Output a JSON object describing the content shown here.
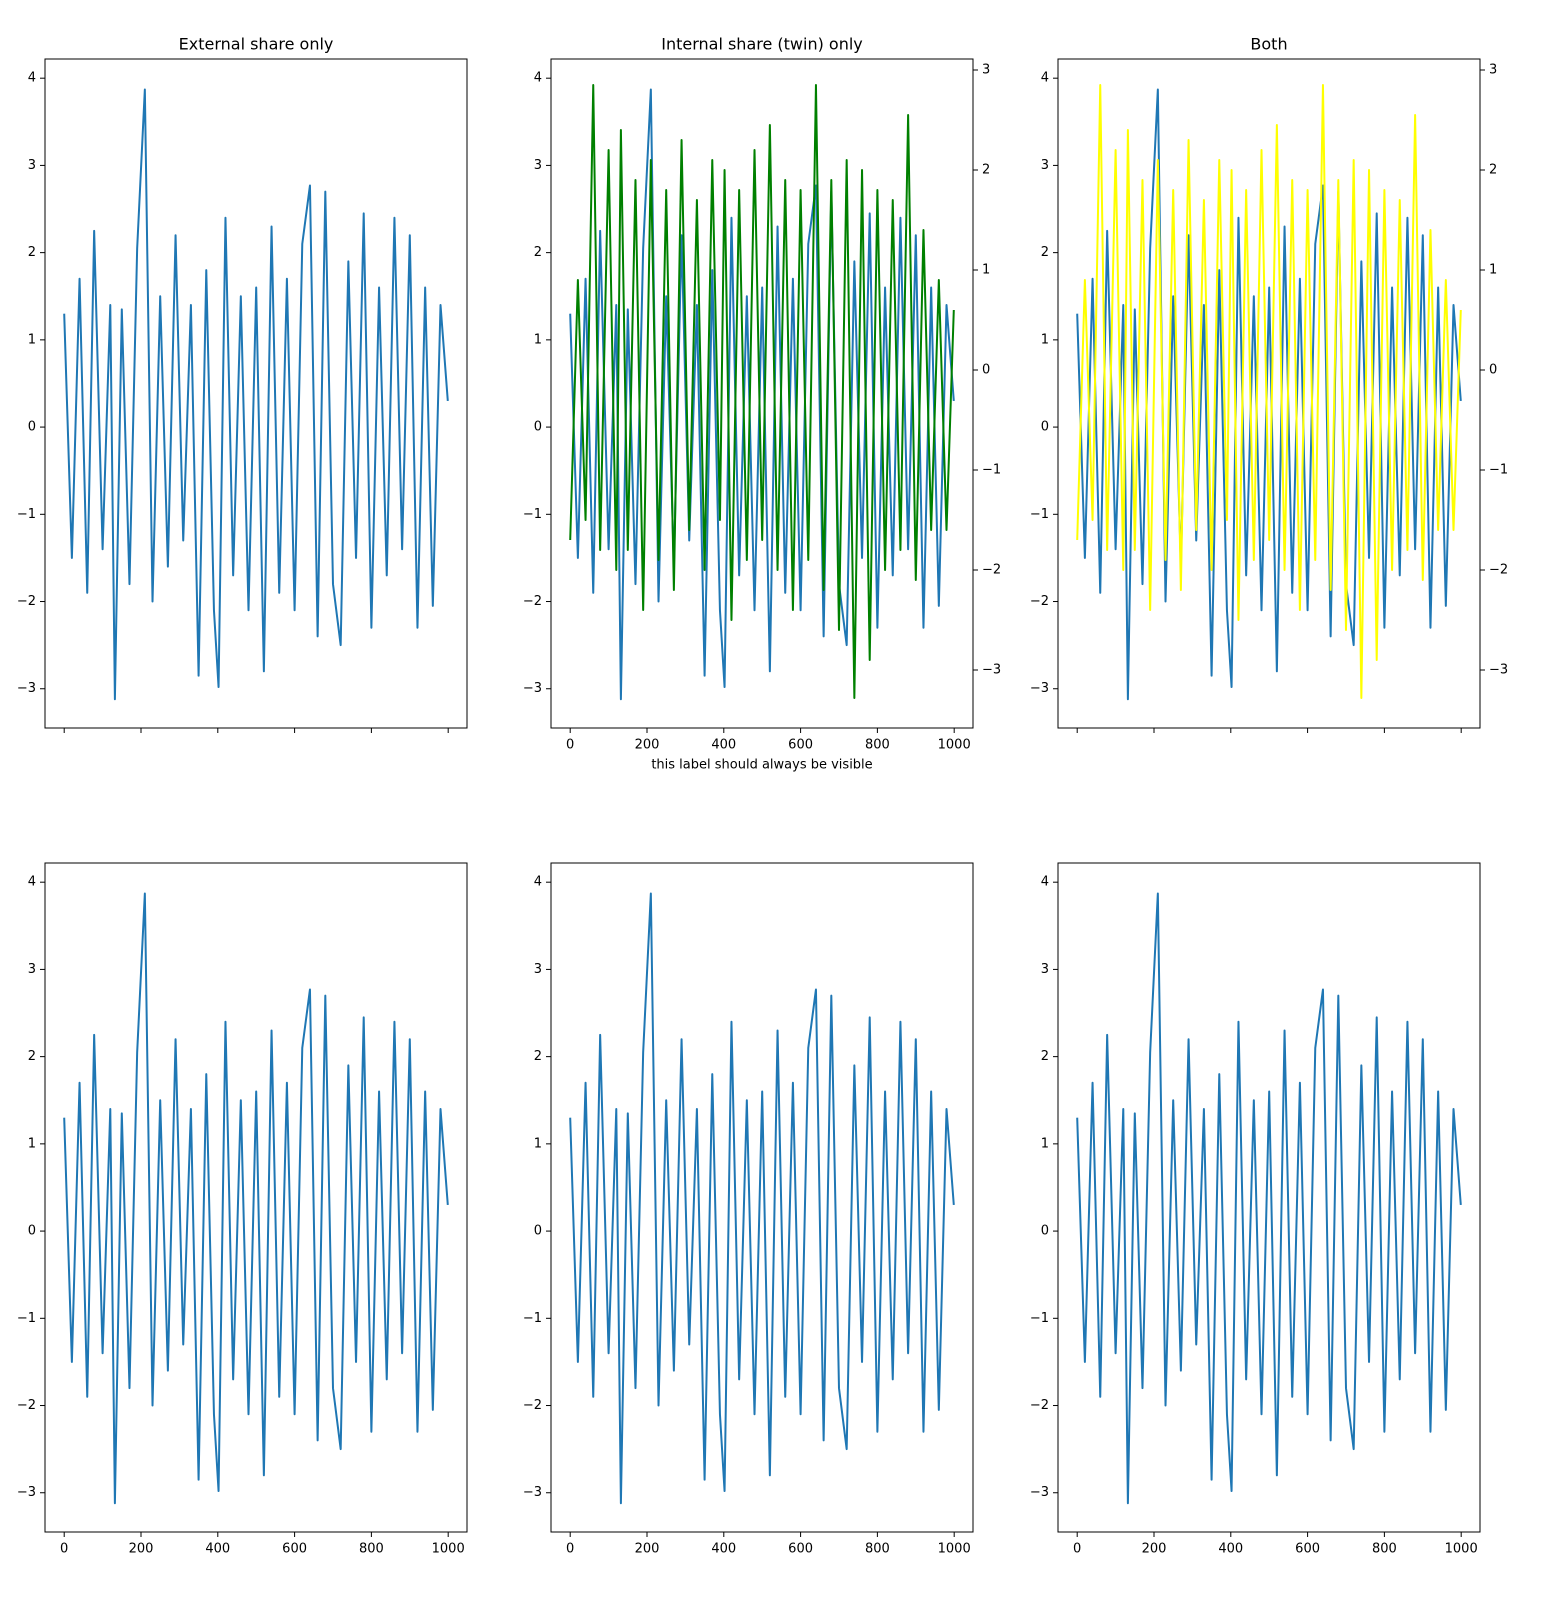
{
  "chart_data": [
    {
      "type": "line",
      "title": "External share only",
      "x": [
        0,
        20,
        40,
        60,
        78,
        100,
        120,
        132,
        150,
        170,
        190,
        210,
        230,
        250,
        270,
        290,
        310,
        330,
        350,
        370,
        390,
        402,
        420,
        440,
        460,
        480,
        500,
        520,
        540,
        560,
        580,
        600,
        620,
        640,
        660,
        680,
        700,
        720,
        740,
        760,
        780,
        800,
        820,
        840,
        860,
        880,
        900,
        920,
        940,
        960,
        980,
        999
      ],
      "series": [
        {
          "color": "#1f77b4",
          "values": [
            1.3,
            -1.5,
            1.7,
            -1.9,
            2.25,
            -1.4,
            1.4,
            -3.12,
            1.35,
            -1.8,
            2.05,
            3.87,
            -2.0,
            1.5,
            -1.6,
            2.2,
            -1.3,
            1.4,
            -2.85,
            1.8,
            -2.1,
            -2.98,
            2.4,
            -1.7,
            1.5,
            -2.1,
            1.6,
            -2.8,
            2.3,
            -1.9,
            1.7,
            -2.1,
            2.1,
            2.77,
            -2.4,
            2.7,
            -1.8,
            -2.5,
            1.9,
            -1.5,
            2.45,
            -2.3,
            1.6,
            -1.7,
            2.4,
            -1.4,
            2.2,
            -2.3,
            1.6,
            -2.05,
            1.4,
            0.3
          ]
        }
      ],
      "xlim": [
        -50,
        1049
      ],
      "ylim": [
        -3.45,
        4.22
      ],
      "xticks": [
        0,
        200,
        400,
        600,
        800,
        1000
      ],
      "xtick_labels_visible": false,
      "yticks": [
        {
          "value": -3,
          "label": "−3"
        },
        {
          "value": -2,
          "label": "−2"
        },
        {
          "value": -1,
          "label": "−1"
        },
        0,
        1,
        2,
        3,
        4
      ]
    },
    {
      "type": "line",
      "title": "Internal share (twin) only",
      "xlabel": "this label should always be visible",
      "x": [
        0,
        20,
        40,
        60,
        78,
        100,
        120,
        132,
        150,
        170,
        190,
        210,
        230,
        250,
        270,
        290,
        310,
        330,
        350,
        370,
        390,
        402,
        420,
        440,
        460,
        480,
        500,
        520,
        540,
        560,
        580,
        600,
        620,
        640,
        660,
        680,
        700,
        720,
        740,
        760,
        780,
        800,
        820,
        840,
        860,
        880,
        900,
        920,
        940,
        960,
        980,
        999
      ],
      "series": [
        {
          "color": "#1f77b4",
          "values": [
            1.3,
            -1.5,
            1.7,
            -1.9,
            2.25,
            -1.4,
            1.4,
            -3.12,
            1.35,
            -1.8,
            2.05,
            3.87,
            -2.0,
            1.5,
            -1.6,
            2.2,
            -1.3,
            1.4,
            -2.85,
            1.8,
            -2.1,
            -2.98,
            2.4,
            -1.7,
            1.5,
            -2.1,
            1.6,
            -2.8,
            2.3,
            -1.9,
            1.7,
            -2.1,
            2.1,
            2.77,
            -2.4,
            2.7,
            -1.8,
            -2.5,
            1.9,
            -1.5,
            2.45,
            -2.3,
            1.6,
            -1.7,
            2.4,
            -1.4,
            2.2,
            -2.3,
            1.6,
            -2.05,
            1.4,
            0.3
          ]
        },
        {
          "color": "green",
          "axis": "y2",
          "values": [
            -1.7,
            0.9,
            -1.5,
            2.85,
            -1.8,
            2.2,
            -2.0,
            2.4,
            -1.8,
            1.9,
            -2.4,
            2.1,
            -1.9,
            1.8,
            -2.2,
            2.3,
            -1.6,
            1.7,
            -2.0,
            2.1,
            -1.5,
            2.0,
            -2.5,
            1.8,
            -1.9,
            2.2,
            -1.7,
            2.45,
            -2.0,
            1.9,
            -2.4,
            1.8,
            -1.9,
            2.85,
            -2.2,
            1.9,
            -2.6,
            2.1,
            -3.28,
            2.0,
            -2.9,
            1.8,
            -2.0,
            1.7,
            -1.8,
            2.55,
            -2.1,
            1.4,
            -1.6,
            0.9,
            -1.6,
            0.6
          ]
        }
      ],
      "xlim": [
        -50,
        1049
      ],
      "ylim": [
        -3.45,
        4.22
      ],
      "y2lim": [
        -3.58,
        3.11
      ],
      "xticks": [
        0,
        200,
        400,
        600,
        800,
        1000
      ],
      "yticks": [
        {
          "value": -3,
          "label": "−3"
        },
        {
          "value": -2,
          "label": "−2"
        },
        {
          "value": -1,
          "label": "−1"
        },
        0,
        1,
        2,
        3,
        4
      ],
      "y2ticks": [
        {
          "value": -3,
          "label": "−3"
        },
        {
          "value": -2,
          "label": "−2"
        },
        {
          "value": -1,
          "label": "−1"
        },
        0,
        1,
        2,
        3
      ]
    },
    {
      "type": "line",
      "title": "Both",
      "x": [
        0,
        20,
        40,
        60,
        78,
        100,
        120,
        132,
        150,
        170,
        190,
        210,
        230,
        250,
        270,
        290,
        310,
        330,
        350,
        370,
        390,
        402,
        420,
        440,
        460,
        480,
        500,
        520,
        540,
        560,
        580,
        600,
        620,
        640,
        660,
        680,
        700,
        720,
        740,
        760,
        780,
        800,
        820,
        840,
        860,
        880,
        900,
        920,
        940,
        960,
        980,
        999
      ],
      "series": [
        {
          "color": "#1f77b4",
          "values": [
            1.3,
            -1.5,
            1.7,
            -1.9,
            2.25,
            -1.4,
            1.4,
            -3.12,
            1.35,
            -1.8,
            2.05,
            3.87,
            -2.0,
            1.5,
            -1.6,
            2.2,
            -1.3,
            1.4,
            -2.85,
            1.8,
            -2.1,
            -2.98,
            2.4,
            -1.7,
            1.5,
            -2.1,
            1.6,
            -2.8,
            2.3,
            -1.9,
            1.7,
            -2.1,
            2.1,
            2.77,
            -2.4,
            2.7,
            -1.8,
            -2.5,
            1.9,
            -1.5,
            2.45,
            -2.3,
            1.6,
            -1.7,
            2.4,
            -1.4,
            2.2,
            -2.3,
            1.6,
            -2.05,
            1.4,
            0.3
          ]
        },
        {
          "color": "yellow",
          "axis": "y2",
          "values": [
            -1.7,
            0.9,
            -1.5,
            2.85,
            -1.8,
            2.2,
            -2.0,
            2.4,
            -1.8,
            1.9,
            -2.4,
            2.1,
            -1.9,
            1.8,
            -2.2,
            2.3,
            -1.6,
            1.7,
            -2.0,
            2.1,
            -1.5,
            2.0,
            -2.5,
            1.8,
            -1.9,
            2.2,
            -1.7,
            2.45,
            -2.0,
            1.9,
            -2.4,
            1.8,
            -1.9,
            2.85,
            -2.2,
            1.9,
            -2.6,
            2.1,
            -3.28,
            2.0,
            -2.9,
            1.8,
            -2.0,
            1.7,
            -1.8,
            2.55,
            -2.1,
            1.4,
            -1.6,
            0.9,
            -1.6,
            0.6
          ]
        }
      ],
      "xlim": [
        -50,
        1049
      ],
      "ylim": [
        -3.45,
        4.22
      ],
      "y2lim": [
        -3.58,
        3.11
      ],
      "xticks": [
        0,
        200,
        400,
        600,
        800,
        1000
      ],
      "xtick_labels_visible": false,
      "yticks": [
        {
          "value": -3,
          "label": "−3"
        },
        {
          "value": -2,
          "label": "−2"
        },
        {
          "value": -1,
          "label": "−1"
        },
        0,
        1,
        2,
        3,
        4
      ],
      "y2ticks": [
        {
          "value": -3,
          "label": "−3"
        },
        {
          "value": -2,
          "label": "−2"
        },
        {
          "value": -1,
          "label": "−1"
        },
        0,
        1,
        2,
        3
      ]
    },
    {
      "type": "line",
      "x": [
        0,
        20,
        40,
        60,
        78,
        100,
        120,
        132,
        150,
        170,
        190,
        210,
        230,
        250,
        270,
        290,
        310,
        330,
        350,
        370,
        390,
        402,
        420,
        440,
        460,
        480,
        500,
        520,
        540,
        560,
        580,
        600,
        620,
        640,
        660,
        680,
        700,
        720,
        740,
        760,
        780,
        800,
        820,
        840,
        860,
        880,
        900,
        920,
        940,
        960,
        980,
        999
      ],
      "series": [
        {
          "color": "#1f77b4",
          "values": [
            1.3,
            -1.5,
            1.7,
            -1.9,
            2.25,
            -1.4,
            1.4,
            -3.12,
            1.35,
            -1.8,
            2.05,
            3.87,
            -2.0,
            1.5,
            -1.6,
            2.2,
            -1.3,
            1.4,
            -2.85,
            1.8,
            -2.1,
            -2.98,
            2.4,
            -1.7,
            1.5,
            -2.1,
            1.6,
            -2.8,
            2.3,
            -1.9,
            1.7,
            -2.1,
            2.1,
            2.77,
            -2.4,
            2.7,
            -1.8,
            -2.5,
            1.9,
            -1.5,
            2.45,
            -2.3,
            1.6,
            -1.7,
            2.4,
            -1.4,
            2.2,
            -2.3,
            1.6,
            -2.05,
            1.4,
            0.3
          ]
        }
      ],
      "xlim": [
        -50,
        1049
      ],
      "ylim": [
        -3.45,
        4.22
      ],
      "xticks": [
        0,
        200,
        400,
        600,
        800,
        1000
      ],
      "yticks": [
        {
          "value": -3,
          "label": "−3"
        },
        {
          "value": -2,
          "label": "−2"
        },
        {
          "value": -1,
          "label": "−1"
        },
        0,
        1,
        2,
        3,
        4
      ]
    },
    {
      "type": "line",
      "x": [
        0,
        20,
        40,
        60,
        78,
        100,
        120,
        132,
        150,
        170,
        190,
        210,
        230,
        250,
        270,
        290,
        310,
        330,
        350,
        370,
        390,
        402,
        420,
        440,
        460,
        480,
        500,
        520,
        540,
        560,
        580,
        600,
        620,
        640,
        660,
        680,
        700,
        720,
        740,
        760,
        780,
        800,
        820,
        840,
        860,
        880,
        900,
        920,
        940,
        960,
        980,
        999
      ],
      "series": [
        {
          "color": "#1f77b4",
          "values": [
            1.3,
            -1.5,
            1.7,
            -1.9,
            2.25,
            -1.4,
            1.4,
            -3.12,
            1.35,
            -1.8,
            2.05,
            3.87,
            -2.0,
            1.5,
            -1.6,
            2.2,
            -1.3,
            1.4,
            -2.85,
            1.8,
            -2.1,
            -2.98,
            2.4,
            -1.7,
            1.5,
            -2.1,
            1.6,
            -2.8,
            2.3,
            -1.9,
            1.7,
            -2.1,
            2.1,
            2.77,
            -2.4,
            2.7,
            -1.8,
            -2.5,
            1.9,
            -1.5,
            2.45,
            -2.3,
            1.6,
            -1.7,
            2.4,
            -1.4,
            2.2,
            -2.3,
            1.6,
            -2.05,
            1.4,
            0.3
          ]
        }
      ],
      "xlim": [
        -50,
        1049
      ],
      "ylim": [
        -3.45,
        4.22
      ],
      "xticks": [
        0,
        200,
        400,
        600,
        800,
        1000
      ],
      "yticks": [
        {
          "value": -3,
          "label": "−3"
        },
        {
          "value": -2,
          "label": "−2"
        },
        {
          "value": -1,
          "label": "−1"
        },
        0,
        1,
        2,
        3,
        4
      ]
    },
    {
      "type": "line",
      "x": [
        0,
        20,
        40,
        60,
        78,
        100,
        120,
        132,
        150,
        170,
        190,
        210,
        230,
        250,
        270,
        290,
        310,
        330,
        350,
        370,
        390,
        402,
        420,
        440,
        460,
        480,
        500,
        520,
        540,
        560,
        580,
        600,
        620,
        640,
        660,
        680,
        700,
        720,
        740,
        760,
        780,
        800,
        820,
        840,
        860,
        880,
        900,
        920,
        940,
        960,
        980,
        999
      ],
      "series": [
        {
          "color": "#1f77b4",
          "values": [
            1.3,
            -1.5,
            1.7,
            -1.9,
            2.25,
            -1.4,
            1.4,
            -3.12,
            1.35,
            -1.8,
            2.05,
            3.87,
            -2.0,
            1.5,
            -1.6,
            2.2,
            -1.3,
            1.4,
            -2.85,
            1.8,
            -2.1,
            -2.98,
            2.4,
            -1.7,
            1.5,
            -2.1,
            1.6,
            -2.8,
            2.3,
            -1.9,
            1.7,
            -2.1,
            2.1,
            2.77,
            -2.4,
            2.7,
            -1.8,
            -2.5,
            1.9,
            -1.5,
            2.45,
            -2.3,
            1.6,
            -1.7,
            2.4,
            -1.4,
            2.2,
            -2.3,
            1.6,
            -2.05,
            1.4,
            0.3
          ]
        }
      ],
      "xlim": [
        -50,
        1049
      ],
      "ylim": [
        -3.45,
        4.22
      ],
      "xticks": [
        0,
        200,
        400,
        600,
        800,
        1000
      ],
      "yticks": [
        {
          "value": -3,
          "label": "−3"
        },
        {
          "value": -2,
          "label": "−2"
        },
        {
          "value": -1,
          "label": "−1"
        },
        0,
        1,
        2,
        3,
        4
      ]
    }
  ]
}
